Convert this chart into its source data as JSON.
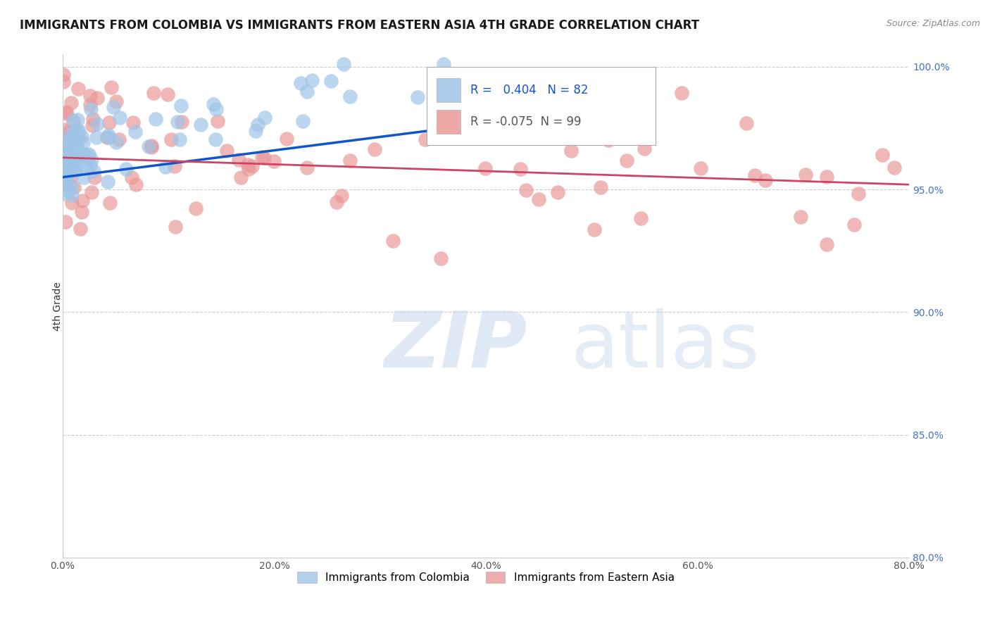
{
  "title": "IMMIGRANTS FROM COLOMBIA VS IMMIGRANTS FROM EASTERN ASIA 4TH GRADE CORRELATION CHART",
  "source": "Source: ZipAtlas.com",
  "ylabel": "4th Grade",
  "xmin": 0.0,
  "xmax": 0.8,
  "ymin": 0.8,
  "ymax": 1.005,
  "yticks": [
    1.0,
    0.95,
    0.9,
    0.85,
    0.8
  ],
  "ytick_labels": [
    "100.0%",
    "95.0%",
    "90.0%",
    "85.0%",
    "80.0%"
  ],
  "xticks": [
    0.0,
    0.2,
    0.4,
    0.6,
    0.8
  ],
  "xtick_labels": [
    "0.0%",
    "20.0%",
    "40.0%",
    "60.0%",
    "80.0%"
  ],
  "colombia_color": "#9fc5e8",
  "eastern_asia_color": "#ea9999",
  "colombia_R": 0.404,
  "colombia_N": 82,
  "eastern_asia_R": -0.075,
  "eastern_asia_N": 99,
  "trend_colombia_color": "#1155cc",
  "trend_eastern_asia_color": "#cc4466",
  "watermark_zip": "ZIP",
  "watermark_atlas": "atlas",
  "legend_label_colombia": "Immigrants from Colombia",
  "legend_label_eastern_asia": "Immigrants from Eastern Asia",
  "ytick_color": "#4472c4",
  "title_fontsize": 12,
  "axis_label_fontsize": 10,
  "tick_fontsize": 10
}
